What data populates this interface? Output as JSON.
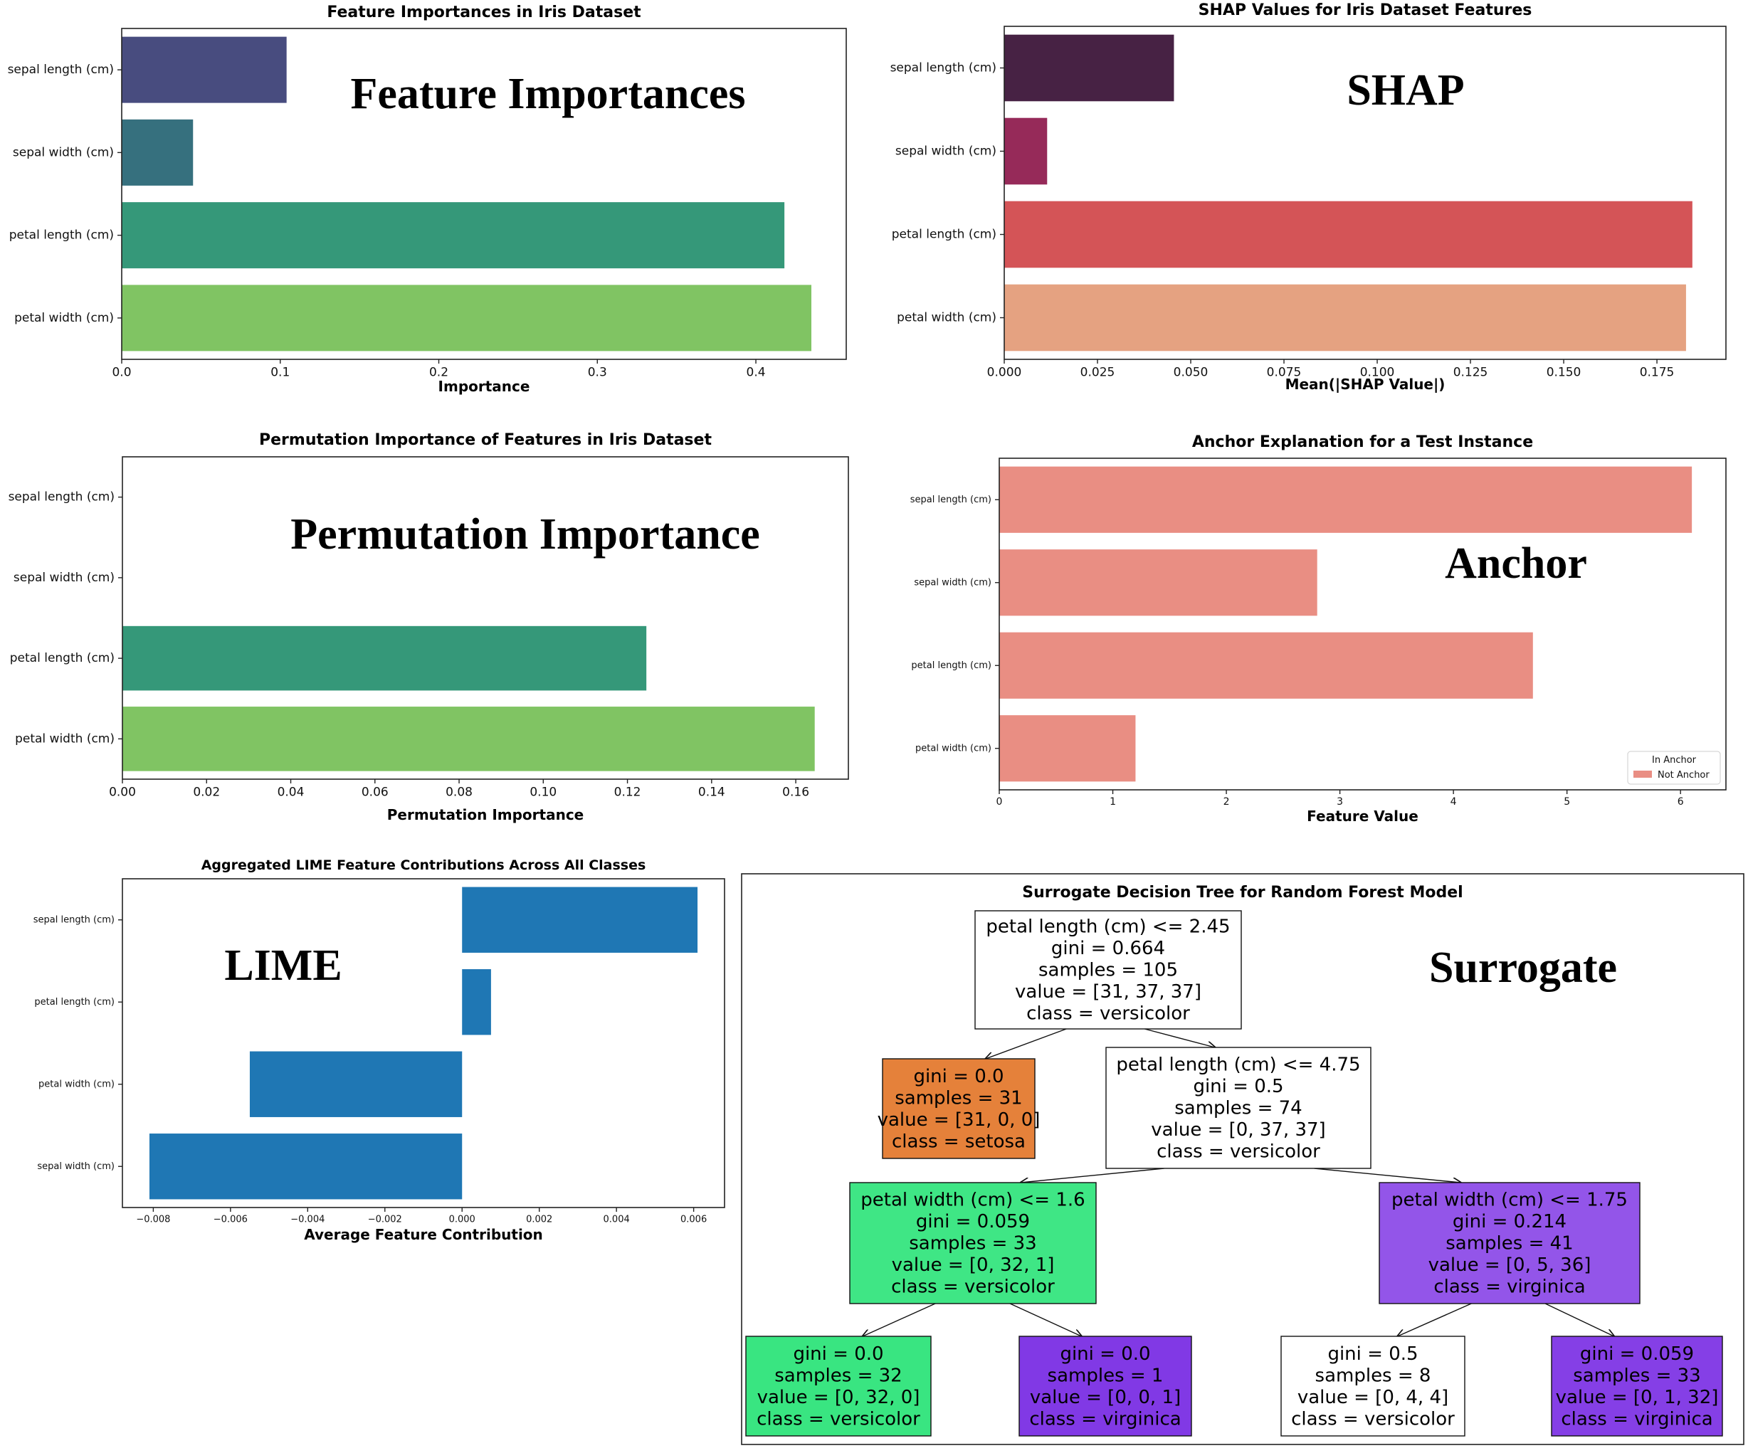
{
  "chart_data": [
    {
      "type": "bar",
      "orientation": "horizontal",
      "title": "Feature Importances in Iris Dataset",
      "xlabel": "Importance",
      "ylabel": "",
      "overlay": "Feature Importances",
      "categories": [
        "sepal length (cm)",
        "sepal width (cm)",
        "petal length (cm)",
        "petal width (cm)"
      ],
      "values": [
        0.104,
        0.045,
        0.418,
        0.435
      ],
      "colors": [
        "#484c7f",
        "#36707e",
        "#359879",
        "#80c463"
      ],
      "xlim": [
        0,
        0.457
      ],
      "xticks": [
        0.0,
        0.1,
        0.2,
        0.3,
        0.4
      ],
      "xtick_labels": [
        "0.0",
        "0.1",
        "0.2",
        "0.3",
        "0.4"
      ]
    },
    {
      "type": "bar",
      "orientation": "horizontal",
      "title": "SHAP Values for Iris Dataset Features",
      "xlabel": "Mean(|SHAP Value|)",
      "ylabel": "",
      "overlay": "SHAP",
      "categories": [
        "sepal length (cm)",
        "sepal width (cm)",
        "petal length (cm)",
        "petal width (cm)"
      ],
      "values": [
        0.0455,
        0.0115,
        0.1845,
        0.1828
      ],
      "colors": [
        "#472244",
        "#962a59",
        "#d45457",
        "#e5a281"
      ],
      "xlim": [
        0,
        0.1935
      ],
      "xticks": [
        0.0,
        0.025,
        0.05,
        0.075,
        0.1,
        0.125,
        0.15,
        0.175
      ],
      "xtick_labels": [
        "0.000",
        "0.025",
        "0.050",
        "0.075",
        "0.100",
        "0.125",
        "0.150",
        "0.175"
      ]
    },
    {
      "type": "bar",
      "orientation": "horizontal",
      "title": "Permutation Importance of Features in Iris Dataset",
      "xlabel": "Permutation Importance",
      "ylabel": "",
      "overlay": "Permutation Importance",
      "categories": [
        "sepal length (cm)",
        "sepal width (cm)",
        "petal length (cm)",
        "petal width (cm)"
      ],
      "values": [
        0.0,
        0.0,
        0.1245,
        0.1645
      ],
      "colors": [
        "#484c7f",
        "#36707e",
        "#359879",
        "#80c463"
      ],
      "xlim": [
        0,
        0.1725
      ],
      "xticks": [
        0.0,
        0.02,
        0.04,
        0.06,
        0.08,
        0.1,
        0.12,
        0.14,
        0.16
      ],
      "xtick_labels": [
        "0.00",
        "0.02",
        "0.04",
        "0.06",
        "0.08",
        "0.10",
        "0.12",
        "0.14",
        "0.16"
      ]
    },
    {
      "type": "bar",
      "orientation": "horizontal",
      "title": "Anchor Explanation for a Test Instance",
      "xlabel": "Feature Value",
      "ylabel": "",
      "overlay": "Anchor",
      "categories": [
        "sepal length (cm)",
        "sepal width (cm)",
        "petal length (cm)",
        "petal width (cm)"
      ],
      "values": [
        6.1,
        2.8,
        4.7,
        1.2
      ],
      "colors": [
        "#e98e83",
        "#e98e83",
        "#e98e83",
        "#e98e83"
      ],
      "xlim": [
        0,
        6.4
      ],
      "xticks": [
        0,
        1,
        2,
        3,
        4,
        5,
        6
      ],
      "xtick_labels": [
        "0",
        "1",
        "2",
        "3",
        "4",
        "5",
        "6"
      ],
      "legend": {
        "title": "In Anchor",
        "entries": [
          "Not Anchor"
        ],
        "color": "#e98e83",
        "position": "lower-right"
      }
    },
    {
      "type": "bar",
      "orientation": "horizontal",
      "title": "Aggregated LIME Feature Contributions Across All Classes",
      "xlabel": "Average Feature Contribution",
      "ylabel": "",
      "overlay": "LIME",
      "categories": [
        "sepal length (cm)",
        "petal length (cm)",
        "petal width (cm)",
        "sepal width (cm)"
      ],
      "values": [
        0.0061,
        0.00075,
        -0.0055,
        -0.0081
      ],
      "colors": [
        "#1f77b4",
        "#1f77b4",
        "#1f77b4",
        "#1f77b4"
      ],
      "xlim": [
        -0.0088,
        0.0068
      ],
      "xticks": [
        -0.008,
        -0.006,
        -0.004,
        -0.002,
        0.0,
        0.002,
        0.004,
        0.006
      ],
      "xtick_labels": [
        "−0.008",
        "−0.006",
        "−0.004",
        "−0.002",
        "0.000",
        "0.002",
        "0.004",
        "0.006"
      ]
    }
  ],
  "tree": {
    "title": "Surrogate Decision Tree for Random Forest Model",
    "overlay": "Surrogate",
    "nodes": [
      {
        "lines": [
          "petal length (cm) <= 2.45",
          "gini = 0.664",
          "samples = 105",
          "value = [31, 37, 37]",
          "class = versicolor"
        ],
        "fill": "#ffffff"
      },
      {
        "lines": [
          "gini = 0.0",
          "samples = 31",
          "value = [31, 0, 0]",
          "class = setosa"
        ],
        "fill": "#e5813a"
      },
      {
        "lines": [
          "petal length (cm) <= 4.75",
          "gini = 0.5",
          "samples = 74",
          "value = [0, 37, 37]",
          "class = versicolor"
        ],
        "fill": "#ffffff"
      },
      {
        "lines": [
          "petal width (cm) <= 1.6",
          "gini = 0.059",
          "samples = 33",
          "value = [0, 32, 1]",
          "class = versicolor"
        ],
        "fill": "#3fe685"
      },
      {
        "lines": [
          "petal width (cm) <= 1.75",
          "gini = 0.214",
          "samples = 41",
          "value = [0, 5, 36]",
          "class = virginica"
        ],
        "fill": "#9355e9"
      },
      {
        "lines": [
          "gini = 0.0",
          "samples = 32",
          "value = [0, 32, 0]",
          "class = versicolor"
        ],
        "fill": "#39e581"
      },
      {
        "lines": [
          "gini = 0.0",
          "samples = 1",
          "value = [0, 0, 1]",
          "class = virginica"
        ],
        "fill": "#8139e5"
      },
      {
        "lines": [
          "gini = 0.5",
          "samples = 8",
          "value = [0, 4, 4]",
          "class = versicolor"
        ],
        "fill": "#ffffff"
      },
      {
        "lines": [
          "gini = 0.059",
          "samples = 33",
          "value = [0, 1, 32]",
          "class = virginica"
        ],
        "fill": "#853fe6"
      }
    ],
    "edges": [
      [
        0,
        1
      ],
      [
        0,
        2
      ],
      [
        2,
        3
      ],
      [
        2,
        4
      ],
      [
        3,
        5
      ],
      [
        3,
        6
      ],
      [
        4,
        7
      ],
      [
        4,
        8
      ]
    ]
  }
}
